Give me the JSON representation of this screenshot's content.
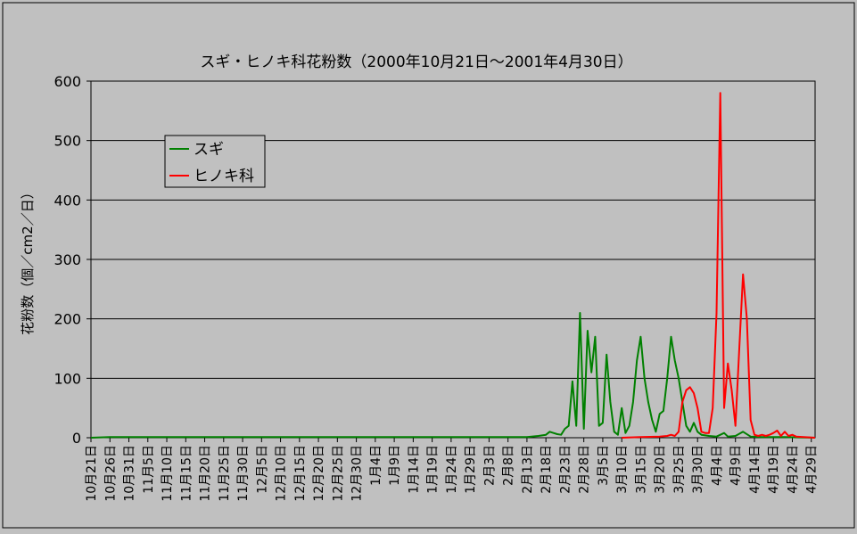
{
  "chart_data": {
    "type": "line",
    "title": "スギ・ヒノキ科花粉数（2000年10月21日～2001年4月30日）",
    "xlabel": "",
    "ylabel": "花粉数（個／cm2／日）",
    "ylim": [
      0,
      600
    ],
    "yticks": [
      "0",
      "100",
      "200",
      "300",
      "400",
      "500",
      "600"
    ],
    "x_start_label": "10月21日",
    "x_tick_labels": [
      "10月21日",
      "10月26日",
      "10月31日",
      "11月5日",
      "11月10日",
      "11月15日",
      "11月20日",
      "11月25日",
      "11月30日",
      "12月5日",
      "12月10日",
      "12月15日",
      "12月20日",
      "12月25日",
      "12月30日",
      "1月4日",
      "1月9日",
      "1月14日",
      "1月19日",
      "1月24日",
      "1月29日",
      "2月3日",
      "2月8日",
      "2月13日",
      "2月18日",
      "2月23日",
      "2月28日",
      "3月5日",
      "3月10日",
      "3月15日",
      "3月20日",
      "3月25日",
      "3月30日",
      "4月4日",
      "4月9日",
      "4月14日",
      "4月19日",
      "4月24日",
      "4月29日"
    ],
    "grid": true,
    "legend_position": "top-left",
    "series": [
      {
        "name": "スギ",
        "color": "#008000",
        "points": [
          [
            "10月21日",
            0
          ],
          [
            "10月26日",
            1
          ],
          [
            "10月31日",
            1
          ],
          [
            "11月5日",
            1
          ],
          [
            "11月10日",
            1
          ],
          [
            "11月15日",
            1
          ],
          [
            "11月20日",
            1
          ],
          [
            "11月25日",
            1
          ],
          [
            "11月30日",
            1
          ],
          [
            "12月5日",
            1
          ],
          [
            "12月10日",
            1
          ],
          [
            "12月15日",
            1
          ],
          [
            "12月20日",
            1
          ],
          [
            "12月25日",
            1
          ],
          [
            "12月30日",
            1
          ],
          [
            "1月4日",
            1
          ],
          [
            "1月9日",
            1
          ],
          [
            "1月14日",
            1
          ],
          [
            "1月19日",
            1
          ],
          [
            "1月24日",
            1
          ],
          [
            "1月29日",
            1
          ],
          [
            "2月3日",
            1
          ],
          [
            "2月8日",
            1
          ],
          [
            "2月13日",
            1
          ],
          [
            "2月16日",
            3
          ],
          [
            "2月18日",
            5
          ],
          [
            "2月19日",
            10
          ],
          [
            "2月20日",
            8
          ],
          [
            "2月21日",
            6
          ],
          [
            "2月22日",
            5
          ],
          [
            "2月23日",
            15
          ],
          [
            "2月24日",
            20
          ],
          [
            "2月25日",
            95
          ],
          [
            "2月26日",
            20
          ],
          [
            "2月27日",
            210
          ],
          [
            "2月28日",
            15
          ],
          [
            "3月1日",
            180
          ],
          [
            "3月2日",
            110
          ],
          [
            "3月3日",
            170
          ],
          [
            "3月4日",
            20
          ],
          [
            "3月5日",
            25
          ],
          [
            "3月6日",
            140
          ],
          [
            "3月7日",
            60
          ],
          [
            "3月8日",
            10
          ],
          [
            "3月9日",
            5
          ],
          [
            "3月10日",
            50
          ],
          [
            "3月11日",
            8
          ],
          [
            "3月12日",
            20
          ],
          [
            "3月13日",
            60
          ],
          [
            "3月14日",
            130
          ],
          [
            "3月15日",
            170
          ],
          [
            "3月16日",
            100
          ],
          [
            "3月17日",
            60
          ],
          [
            "3月18日",
            30
          ],
          [
            "3月19日",
            10
          ],
          [
            "3月20日",
            40
          ],
          [
            "3月21日",
            45
          ],
          [
            "3月22日",
            100
          ],
          [
            "3月23日",
            170
          ],
          [
            "3月24日",
            130
          ],
          [
            "3月25日",
            100
          ],
          [
            "3月26日",
            60
          ],
          [
            "3月27日",
            20
          ],
          [
            "3月28日",
            10
          ],
          [
            "3月29日",
            25
          ],
          [
            "3月30日",
            10
          ],
          [
            "3月31日",
            5
          ],
          [
            "4月2日",
            3
          ],
          [
            "4月4日",
            2
          ],
          [
            "4月6日",
            8
          ],
          [
            "4月7日",
            2
          ],
          [
            "4月9日",
            3
          ],
          [
            "4月11日",
            10
          ],
          [
            "4月13日",
            2
          ],
          [
            "4月16日",
            1
          ],
          [
            "4月22日",
            1
          ],
          [
            "4月30日",
            0
          ]
        ]
      },
      {
        "name": "ヒノキ科",
        "color": "#ff0000",
        "points": [
          [
            "3月10日",
            0
          ],
          [
            "3月15日",
            1
          ],
          [
            "3月20日",
            2
          ],
          [
            "3月22日",
            3
          ],
          [
            "3月23日",
            5
          ],
          [
            "3月24日",
            3
          ],
          [
            "3月25日",
            10
          ],
          [
            "3月26日",
            60
          ],
          [
            "3月27日",
            80
          ],
          [
            "3月28日",
            85
          ],
          [
            "3月29日",
            75
          ],
          [
            "3月30日",
            50
          ],
          [
            "3月31日",
            10
          ],
          [
            "4月1日",
            8
          ],
          [
            "4月2日",
            8
          ],
          [
            "4月3日",
            50
          ],
          [
            "4月4日",
            210
          ],
          [
            "4月5日",
            580
          ],
          [
            "4月6日",
            50
          ],
          [
            "4月7日",
            125
          ],
          [
            "4月8日",
            80
          ],
          [
            "4月9日",
            20
          ],
          [
            "4月10日",
            150
          ],
          [
            "4月11日",
            275
          ],
          [
            "4月12日",
            200
          ],
          [
            "4月13日",
            30
          ],
          [
            "4月14日",
            5
          ],
          [
            "4月15日",
            3
          ],
          [
            "4月16日",
            5
          ],
          [
            "4月17日",
            3
          ],
          [
            "4月18日",
            5
          ],
          [
            "4月19日",
            8
          ],
          [
            "4月20日",
            12
          ],
          [
            "4月21日",
            3
          ],
          [
            "4月22日",
            10
          ],
          [
            "4月23日",
            3
          ],
          [
            "4月24日",
            5
          ],
          [
            "4月25日",
            2
          ],
          [
            "4月27日",
            1
          ],
          [
            "4月30日",
            0
          ]
        ]
      }
    ]
  }
}
